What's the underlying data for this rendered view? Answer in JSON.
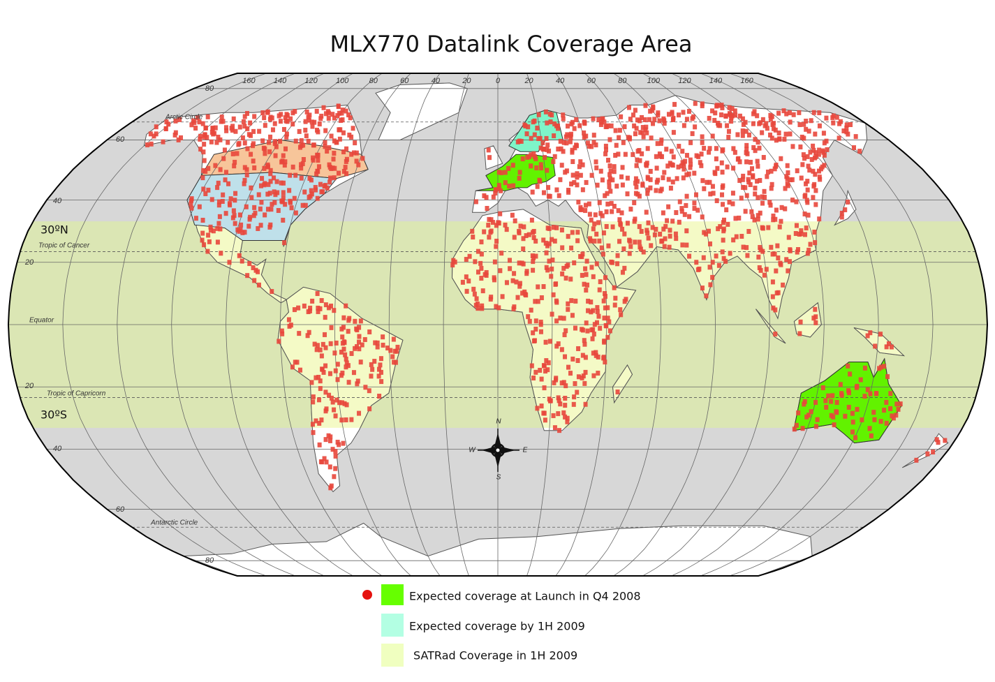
{
  "title": "MLX770 Datalink Coverage Area",
  "longitude_labels": [
    "160",
    "140",
    "120",
    "100",
    "80",
    "60",
    "40",
    "20",
    "0",
    "20",
    "40",
    "60",
    "80",
    "100",
    "120",
    "140",
    "160"
  ],
  "latitude_labels": [
    "80",
    "60",
    "40",
    "20",
    "20",
    "40",
    "60",
    "80"
  ],
  "reference_lines": [
    "Arctic Circle",
    "Tropic of Cancer",
    "Equator",
    "Tropic of Capricorn",
    "Antarctic Circle"
  ],
  "band_labels": [
    "30ºN",
    "30ºS"
  ],
  "compass": {
    "n": "N",
    "e": "E",
    "s": "S",
    "w": "W"
  },
  "legend": [
    "Expected coverage at Launch in Q4 2008",
    "Expected coverage by 1H 2009",
    "SATRad Coverage in 1H 2009"
  ]
}
